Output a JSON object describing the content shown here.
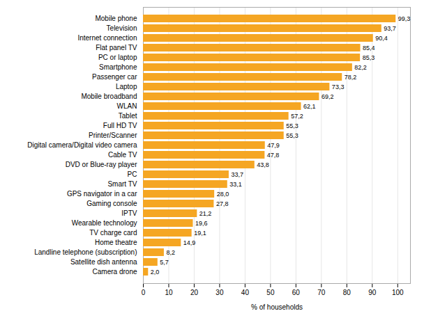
{
  "chart_data": {
    "type": "bar",
    "orientation": "horizontal",
    "categories": [
      "Camera drone",
      "Satellite dish antenna",
      "Landline telephone (subscription)",
      "Home theatre",
      "TV charge card",
      "Wearable technology",
      "IPTV",
      "Gaming console",
      "GPS navigator in a car",
      "Smart TV",
      "PC",
      "DVD or Blue-ray player",
      "Cable TV",
      "Digital camera/Digital video camera",
      "Printer/Scanner",
      "Full HD TV",
      "Tablet",
      "WLAN",
      "Mobile broadband",
      "Laptop",
      "Passenger car",
      "Smartphone",
      "PC or laptop",
      "Flat panel TV",
      "Internet connection",
      "Television",
      "Mobile phone"
    ],
    "values": [
      2.0,
      5.7,
      8.2,
      14.9,
      19.1,
      19.6,
      21.2,
      27.8,
      28.0,
      33.1,
      33.7,
      43.8,
      47.8,
      47.9,
      55.3,
      55.3,
      57.2,
      62.1,
      69.2,
      73.3,
      78.2,
      82.2,
      85.3,
      85.4,
      90.4,
      93.7,
      99.3
    ],
    "value_labels": [
      "2,0",
      "5,7",
      "8,2",
      "14,9",
      "19,1",
      "19,6",
      "21,2",
      "27,8",
      "28,0",
      "33,1",
      "33,7",
      "43,8",
      "47,8",
      "47,9",
      "55,3",
      "55,3",
      "57,2",
      "62,1",
      "69,2",
      "73,3",
      "78,2",
      "82,2",
      "85,3",
      "85,4",
      "90,4",
      "93,7",
      "99,3"
    ],
    "data_labels": true,
    "color": "#F5A623",
    "xlabel": "% of households",
    "xlim": [
      0,
      105
    ],
    "xticks": [
      0,
      10,
      20,
      30,
      40,
      50,
      60,
      70,
      80,
      90,
      100
    ],
    "grid": true
  }
}
